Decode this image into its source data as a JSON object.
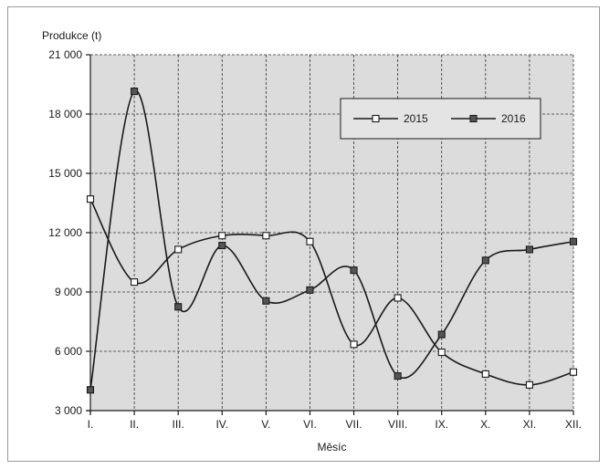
{
  "chart_data": {
    "type": "line",
    "title": "",
    "ylabel": "Produkce (t)",
    "xlabel": "Měsíc",
    "categories": [
      "I.",
      "II.",
      "III.",
      "IV.",
      "V.",
      "VI.",
      "VII.",
      "VIII.",
      "IX.",
      "X.",
      "XI.",
      "XII."
    ],
    "y_ticks": [
      3000,
      6000,
      9000,
      12000,
      15000,
      18000,
      21000
    ],
    "y_tick_labels": [
      "3 000",
      "6 000",
      "9 000",
      "12 000",
      "15 000",
      "18 000",
      "21 000"
    ],
    "ylim": [
      3000,
      21000
    ],
    "grid": true,
    "legend_position": "top-right",
    "series": [
      {
        "name": "2015",
        "marker": "open-square",
        "values": [
          13700,
          9500,
          11150,
          11850,
          11850,
          11550,
          6350,
          8700,
          5950,
          4850,
          4300,
          4950
        ]
      },
      {
        "name": "2016",
        "marker": "filled-square",
        "values": [
          4050,
          19150,
          8250,
          11350,
          8550,
          9100,
          10100,
          4750,
          6850,
          10600,
          11150,
          11550
        ]
      }
    ],
    "colors": {
      "plot_background": "#dcdcdc",
      "line": "#1a1a1a",
      "open_marker_fill": "#ffffff",
      "filled_marker_fill": "#555555"
    }
  }
}
